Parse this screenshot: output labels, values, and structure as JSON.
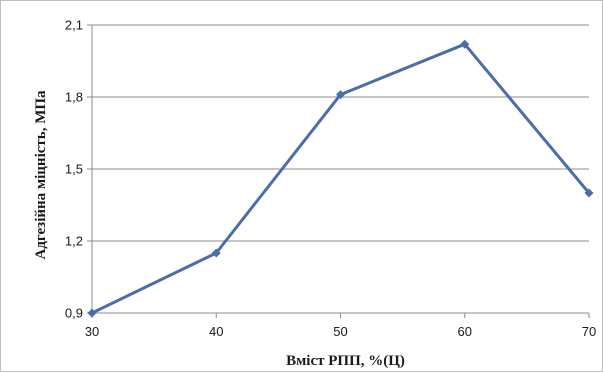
{
  "chart_data": {
    "type": "line",
    "title": "",
    "xlabel": "Вміст РПП, %(Ц)",
    "ylabel": "Адгезійна міцність, МПа",
    "x": [
      30,
      40,
      50,
      60,
      70
    ],
    "x_tick_labels": [
      "30",
      "40",
      "50",
      "60",
      "70"
    ],
    "y_tick_values": [
      0.9,
      1.2,
      1.5,
      1.8,
      2.1
    ],
    "y_tick_labels": [
      "0,9",
      "1,2",
      "1,5",
      "1,8",
      "2,1"
    ],
    "xlim": [
      30,
      70
    ],
    "ylim": [
      0.9,
      2.1
    ],
    "grid": "horizontal",
    "legend": "none",
    "series": [
      {
        "values": [
          0.9,
          1.15,
          1.81,
          2.02,
          1.4
        ],
        "color": "#4a6ea9",
        "marker": "diamond"
      }
    ]
  }
}
